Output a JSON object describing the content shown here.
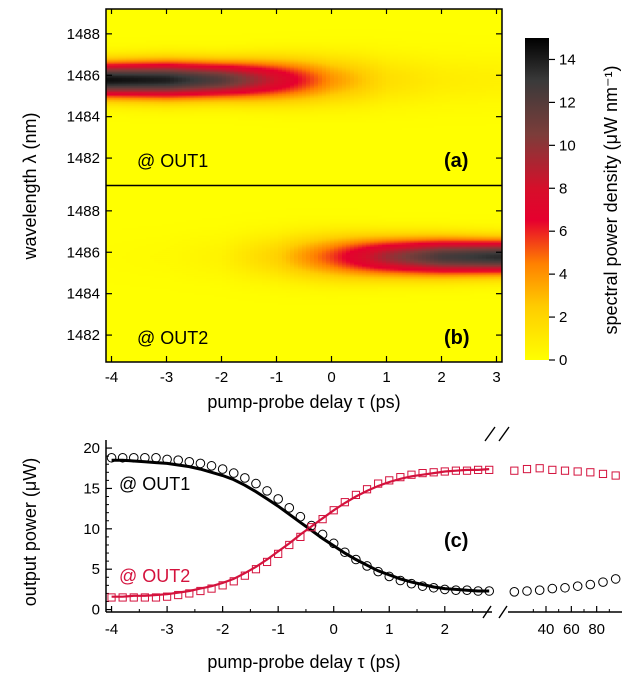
{
  "chart_data": [
    {
      "type": "heatmap",
      "panel_label": "(a)",
      "annotation": "@ OUT1",
      "xlabel": "pump-probe delay τ   (ps)",
      "ylabel": "wavelength λ   (nm)",
      "xlim": [
        -4.1,
        3.1
      ],
      "ylim": [
        1480.7,
        1489.2
      ],
      "x_ticks": [
        "-4",
        "-3",
        "-2",
        "-1",
        "0",
        "1",
        "2",
        "3"
      ],
      "y_ticks": [
        "1482",
        "1484",
        "1486",
        "1488"
      ],
      "peak_center_wavelength": 1485.8,
      "peak_profile": [
        {
          "x": -4.0,
          "peak": 14.5,
          "width": 0.75
        },
        {
          "x": -3.0,
          "peak": 14.0,
          "width": 0.8
        },
        {
          "x": -2.0,
          "peak": 12.0,
          "width": 0.8
        },
        {
          "x": -1.0,
          "peak": 8.0,
          "width": 0.9
        },
        {
          "x": 0.0,
          "peak": 4.0,
          "width": 1.0
        },
        {
          "x": 1.0,
          "peak": 1.6,
          "width": 1.1
        },
        {
          "x": 2.0,
          "peak": 0.9,
          "width": 1.1
        },
        {
          "x": 3.0,
          "peak": 0.7,
          "width": 1.1
        }
      ]
    },
    {
      "type": "heatmap",
      "panel_label": "(b)",
      "annotation": "@ OUT2",
      "xlim": [
        -4.1,
        3.1
      ],
      "ylim": [
        1480.7,
        1489.2
      ],
      "x_ticks": [
        "-4",
        "-3",
        "-2",
        "-1",
        "0",
        "1",
        "2",
        "3"
      ],
      "y_ticks": [
        "1482",
        "1484",
        "1486",
        "1488"
      ],
      "peak_center_wavelength": 1485.8,
      "peak_profile": [
        {
          "x": -4.0,
          "peak": 0.1,
          "width": 1.0
        },
        {
          "x": -3.0,
          "peak": 0.2,
          "width": 1.0
        },
        {
          "x": -2.0,
          "peak": 0.6,
          "width": 1.0
        },
        {
          "x": -1.0,
          "peak": 2.2,
          "width": 1.0
        },
        {
          "x": 0.0,
          "peak": 5.5,
          "width": 0.95
        },
        {
          "x": 1.0,
          "peak": 9.5,
          "width": 0.85
        },
        {
          "x": 2.0,
          "peak": 12.5,
          "width": 0.8
        },
        {
          "x": 3.0,
          "peak": 13.5,
          "width": 0.75
        }
      ]
    },
    {
      "type": "colorbar",
      "label": "spectral power density   (μW nm⁻¹)",
      "range": [
        0,
        15
      ],
      "ticks": [
        "0",
        "2",
        "4",
        "6",
        "8",
        "10",
        "12",
        "14"
      ],
      "colors": [
        {
          "v": 0,
          "c": "#ffff00"
        },
        {
          "v": 2.5,
          "c": "#ffcc00"
        },
        {
          "v": 4.5,
          "c": "#ff8000"
        },
        {
          "v": 6.5,
          "c": "#e6002e"
        },
        {
          "v": 8.0,
          "c": "#d60f2a"
        },
        {
          "v": 10.5,
          "c": "#7c3d3a"
        },
        {
          "v": 13.0,
          "c": "#3a3a3a"
        },
        {
          "v": 15,
          "c": "#000000"
        }
      ]
    },
    {
      "type": "scatter",
      "panel_label": "(c)",
      "xlabel": "pump-probe delay τ   (ps)",
      "ylabel": "output power   (μW)",
      "ylim": [
        0,
        20
      ],
      "x_ticks_left": [
        "-4",
        "-3",
        "-2",
        "-1",
        "0",
        "1",
        "2"
      ],
      "x_ticks_right": [
        "40",
        "60",
        "80"
      ],
      "y_ticks": [
        "0",
        "5",
        "10",
        "15",
        "20"
      ],
      "annotation_out1": "@ OUT1",
      "annotation_out2": "@ OUT2",
      "colors": {
        "out1": "#000000",
        "out2": "#d4123d"
      },
      "out1_left_x": [
        -4.0,
        -3.8,
        -3.6,
        -3.4,
        -3.2,
        -3.0,
        -2.8,
        -2.6,
        -2.4,
        -2.2,
        -2.0,
        -1.8,
        -1.6,
        -1.4,
        -1.2,
        -1.0,
        -0.8,
        -0.6,
        -0.4,
        -0.2,
        0.0,
        0.2,
        0.4,
        0.6,
        0.8,
        1.0,
        1.2,
        1.4,
        1.6,
        1.8,
        2.0,
        2.2,
        2.4,
        2.6,
        2.8
      ],
      "out1_left_y": [
        18.8,
        18.8,
        18.8,
        18.8,
        18.8,
        18.6,
        18.5,
        18.3,
        18.1,
        17.8,
        17.4,
        16.9,
        16.3,
        15.6,
        14.7,
        13.7,
        12.6,
        11.5,
        10.4,
        9.3,
        8.2,
        7.1,
        6.2,
        5.4,
        4.7,
        4.1,
        3.6,
        3.2,
        2.9,
        2.7,
        2.5,
        2.4,
        2.4,
        2.3,
        2.3
      ],
      "out2_left_x": [
        -4.0,
        -3.8,
        -3.6,
        -3.4,
        -3.2,
        -3.0,
        -2.8,
        -2.6,
        -2.4,
        -2.2,
        -2.0,
        -1.8,
        -1.6,
        -1.4,
        -1.2,
        -1.0,
        -0.8,
        -0.6,
        -0.4,
        -0.2,
        0.0,
        0.2,
        0.4,
        0.6,
        0.8,
        1.0,
        1.2,
        1.4,
        1.6,
        1.8,
        2.0,
        2.2,
        2.4,
        2.6,
        2.8
      ],
      "out2_left_y": [
        1.5,
        1.5,
        1.5,
        1.5,
        1.5,
        1.6,
        1.8,
        2.0,
        2.3,
        2.6,
        3.0,
        3.5,
        4.2,
        5.0,
        5.9,
        6.9,
        8.0,
        9.0,
        10.2,
        11.2,
        12.3,
        13.3,
        14.2,
        14.9,
        15.6,
        16.0,
        16.4,
        16.7,
        16.9,
        17.0,
        17.1,
        17.2,
        17.2,
        17.3,
        17.3
      ],
      "fit_out1_y": [
        18.5,
        18.5,
        18.4,
        18.3,
        18.2,
        18.1,
        17.9,
        17.7,
        17.4,
        17.0,
        16.6,
        16.1,
        15.4,
        14.6,
        13.7,
        12.8,
        11.8,
        10.8,
        9.8,
        8.8,
        7.9,
        7.0,
        6.2,
        5.5,
        4.8,
        4.3,
        3.8,
        3.4,
        3.1,
        2.8,
        2.6,
        2.5,
        2.4,
        2.3,
        2.3
      ],
      "fit_out2_y": [
        1.6,
        1.6,
        1.7,
        1.7,
        1.8,
        1.9,
        2.1,
        2.3,
        2.6,
        2.9,
        3.3,
        3.8,
        4.5,
        5.3,
        6.2,
        7.2,
        8.2,
        9.3,
        10.3,
        11.3,
        12.3,
        13.2,
        14.0,
        14.7,
        15.3,
        15.8,
        16.2,
        16.5,
        16.7,
        16.9,
        17.1,
        17.2,
        17.3,
        17.3,
        17.4
      ],
      "out1_right_x": [
        15,
        25,
        35,
        45,
        55,
        65,
        75,
        85,
        95
      ],
      "out1_right_y": [
        2.2,
        2.3,
        2.4,
        2.6,
        2.7,
        2.9,
        3.1,
        3.4,
        3.8
      ],
      "out2_right_x": [
        15,
        25,
        35,
        45,
        55,
        65,
        75,
        85,
        95
      ],
      "out2_right_y": [
        17.2,
        17.4,
        17.5,
        17.3,
        17.2,
        17.1,
        17.0,
        16.8,
        16.6
      ]
    }
  ]
}
